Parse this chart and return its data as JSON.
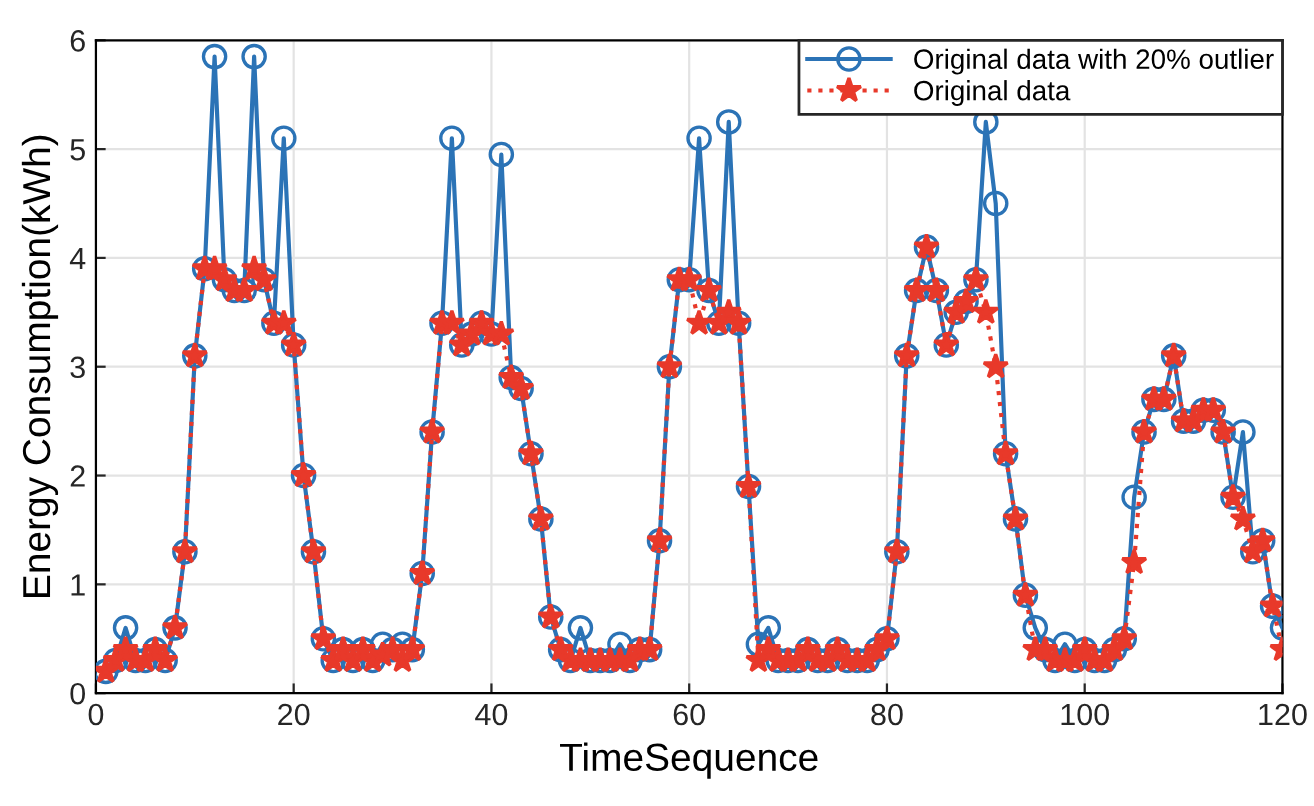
{
  "chart_data": {
    "type": "line",
    "xlabel": "TimeSequence",
    "ylabel": "Energy Consumption(kWh)",
    "x": [
      1,
      2,
      3,
      4,
      5,
      6,
      7,
      8,
      9,
      10,
      11,
      12,
      13,
      14,
      15,
      16,
      17,
      18,
      19,
      20,
      21,
      22,
      23,
      24,
      25,
      26,
      27,
      28,
      29,
      30,
      31,
      32,
      33,
      34,
      35,
      36,
      37,
      38,
      39,
      40,
      41,
      42,
      43,
      44,
      45,
      46,
      47,
      48,
      49,
      50,
      51,
      52,
      53,
      54,
      55,
      56,
      57,
      58,
      59,
      60,
      61,
      62,
      63,
      64,
      65,
      66,
      67,
      68,
      69,
      70,
      71,
      72,
      73,
      74,
      75,
      76,
      77,
      78,
      79,
      80,
      81,
      82,
      83,
      84,
      85,
      86,
      87,
      88,
      89,
      90,
      91,
      92,
      93,
      94,
      95,
      96,
      97,
      98,
      99,
      100,
      101,
      102,
      103,
      104,
      105,
      106,
      107,
      108,
      109,
      110,
      111,
      112,
      113,
      114,
      115,
      116,
      117,
      118,
      119,
      120
    ],
    "series": [
      {
        "name": "Original data with 20% outlier",
        "color": "#2b73b6",
        "marker": "circle",
        "line_style": "solid",
        "values": [
          0.2,
          0.3,
          0.6,
          0.3,
          0.3,
          0.4,
          0.3,
          0.6,
          1.3,
          3.1,
          3.9,
          5.85,
          3.8,
          3.7,
          3.7,
          5.85,
          3.8,
          3.4,
          5.1,
          3.2,
          2.0,
          1.3,
          0.5,
          0.3,
          0.4,
          0.3,
          0.4,
          0.3,
          0.45,
          0.4,
          0.45,
          0.4,
          1.1,
          2.4,
          3.4,
          5.1,
          3.2,
          3.3,
          3.4,
          3.3,
          4.95,
          2.9,
          2.8,
          2.2,
          1.6,
          0.7,
          0.4,
          0.3,
          0.6,
          0.3,
          0.3,
          0.3,
          0.45,
          0.3,
          0.4,
          0.4,
          1.4,
          3.0,
          3.8,
          3.8,
          5.1,
          3.7,
          3.4,
          5.25,
          3.4,
          1.9,
          0.45,
          0.6,
          0.3,
          0.3,
          0.3,
          0.4,
          0.3,
          0.3,
          0.4,
          0.3,
          0.3,
          0.3,
          0.4,
          0.5,
          1.3,
          3.1,
          3.7,
          4.1,
          3.7,
          3.2,
          3.5,
          3.6,
          3.8,
          5.25,
          4.5,
          2.2,
          1.6,
          0.9,
          0.6,
          0.4,
          0.3,
          0.45,
          0.3,
          0.4,
          0.3,
          0.3,
          0.4,
          0.5,
          1.8,
          2.4,
          2.7,
          2.7,
          3.1,
          2.5,
          2.5,
          2.6,
          2.6,
          2.4,
          1.8,
          2.4,
          1.3,
          1.4,
          0.8,
          0.6
        ]
      },
      {
        "name": "Original data",
        "color": "#e8392a",
        "marker": "star",
        "line_style": "dotted",
        "values": [
          0.2,
          0.3,
          0.4,
          0.3,
          0.3,
          0.4,
          0.3,
          0.6,
          1.3,
          3.1,
          3.9,
          3.9,
          3.8,
          3.7,
          3.7,
          3.9,
          3.8,
          3.4,
          3.4,
          3.2,
          2.0,
          1.3,
          0.5,
          0.3,
          0.4,
          0.3,
          0.4,
          0.3,
          0.35,
          0.4,
          0.3,
          0.4,
          1.1,
          2.4,
          3.4,
          3.4,
          3.2,
          3.3,
          3.4,
          3.3,
          3.3,
          2.9,
          2.8,
          2.2,
          1.6,
          0.7,
          0.4,
          0.3,
          0.3,
          0.3,
          0.3,
          0.3,
          0.3,
          0.3,
          0.4,
          0.4,
          1.4,
          3.0,
          3.8,
          3.8,
          3.4,
          3.7,
          3.4,
          3.5,
          3.4,
          1.9,
          0.3,
          0.4,
          0.3,
          0.3,
          0.3,
          0.4,
          0.3,
          0.3,
          0.4,
          0.3,
          0.3,
          0.3,
          0.4,
          0.5,
          1.3,
          3.1,
          3.7,
          4.1,
          3.7,
          3.2,
          3.5,
          3.6,
          3.8,
          3.5,
          3.0,
          2.2,
          1.6,
          0.9,
          0.4,
          0.4,
          0.3,
          0.3,
          0.3,
          0.4,
          0.3,
          0.3,
          0.4,
          0.5,
          1.2,
          2.4,
          2.7,
          2.7,
          3.1,
          2.5,
          2.5,
          2.6,
          2.6,
          2.4,
          1.8,
          1.6,
          1.3,
          1.4,
          0.8,
          0.4
        ]
      }
    ],
    "xlim": [
      0,
      120
    ],
    "xticks": [
      0,
      20,
      40,
      60,
      80,
      100,
      120
    ],
    "ylim": [
      0,
      6
    ],
    "yticks": [
      0,
      1,
      2,
      3,
      4,
      5,
      6
    ],
    "grid": true,
    "legend": "top right"
  }
}
